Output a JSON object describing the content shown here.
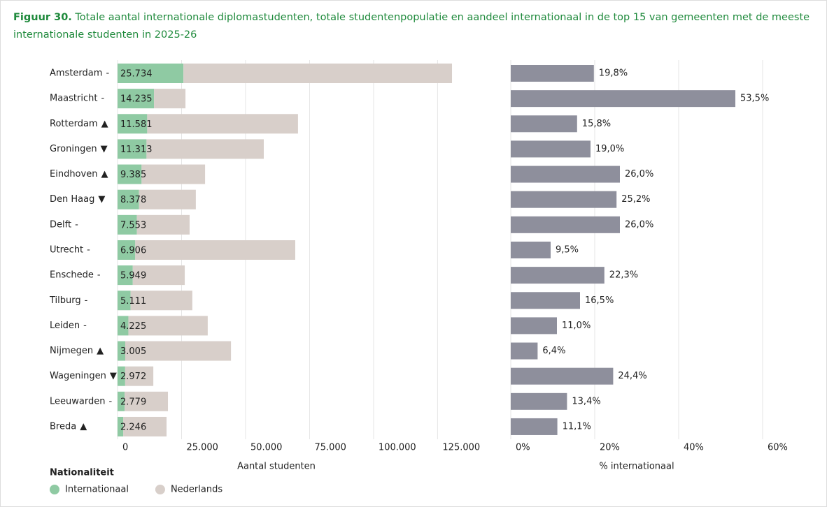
{
  "title_prefix": "Figuur 30.",
  "title": "Totale aantal internationale diplomastudenten, totale studentenpopulatie en aandeel internationaal in de top 15 van gemeenten met de meeste internationale studenten in 2025-26",
  "chart_data": [
    {
      "type": "stacked_bar",
      "orientation": "horizontal",
      "categories": [
        "Amsterdam",
        "Maastricht",
        "Rotterdam",
        "Groningen",
        "Eindhoven",
        "Den Haag",
        "Delft",
        "Utrecht",
        "Enschede",
        "Tilburg",
        "Leiden",
        "Nijmegen",
        "Wageningen",
        "Leeuwarden",
        "Breda"
      ],
      "trends": [
        "-",
        "-",
        "▲",
        "▼",
        "▲",
        "▼",
        "-",
        "-",
        "-",
        "-",
        "-",
        "▲",
        "▼",
        "-",
        "▲"
      ],
      "series": [
        {
          "name": "Internationaal",
          "color": "#8fcaa3",
          "values": [
            25734,
            14235,
            11581,
            11313,
            9385,
            8378,
            7553,
            6906,
            5949,
            5111,
            4225,
            3005,
            2972,
            2779,
            2246
          ],
          "value_labels": [
            "25.734",
            "14.235",
            "11.581",
            "11.313",
            "9.385",
            "8.378",
            "7.553",
            "6.906",
            "5.949",
            "5.111",
            "4.225",
            "3.005",
            "2.972",
            "2.779",
            "2.246"
          ]
        },
        {
          "name": "Nederlands",
          "color": "#d8cfca",
          "values": [
            104900,
            12300,
            58900,
            45800,
            24800,
            22200,
            20600,
            62500,
            20300,
            24100,
            31000,
            41300,
            11000,
            16900,
            16900
          ]
        }
      ],
      "xlim": [
        0,
        135000
      ],
      "xticks": [
        0,
        {
          "value": 25000,
          "label": "25.000"
        },
        {
          "value": 50000,
          "label": "50.000"
        },
        {
          "value": 75000,
          "label": "75.000"
        },
        {
          "value": 100000,
          "label": "100.000"
        },
        {
          "value": 125000,
          "label": "125.000"
        }
      ],
      "xlabel": "Aantal studenten",
      "grid": true,
      "legend_title": "Nationaliteit"
    },
    {
      "type": "bar",
      "orientation": "horizontal",
      "color": "#8e8f9c",
      "values": [
        19.8,
        53.5,
        15.8,
        19.0,
        26.0,
        25.2,
        26.0,
        9.5,
        22.3,
        16.5,
        11.0,
        6.4,
        24.4,
        13.4,
        11.1
      ],
      "value_labels": [
        "19,8%",
        "53,5%",
        "15,8%",
        "19,0%",
        "26,0%",
        "25,2%",
        "26,0%",
        "9,5%",
        "22,3%",
        "16,5%",
        "11,0%",
        "6,4%",
        "24,4%",
        "13,4%",
        "11,1%"
      ],
      "xlim": [
        0,
        60
      ],
      "xticks": [
        {
          "value": 0,
          "label": "0%"
        },
        {
          "value": 20,
          "label": "20%"
        },
        {
          "value": 40,
          "label": "40%"
        },
        {
          "value": 60,
          "label": "60%"
        }
      ],
      "xlabel": "% internationaal",
      "grid": true
    }
  ]
}
